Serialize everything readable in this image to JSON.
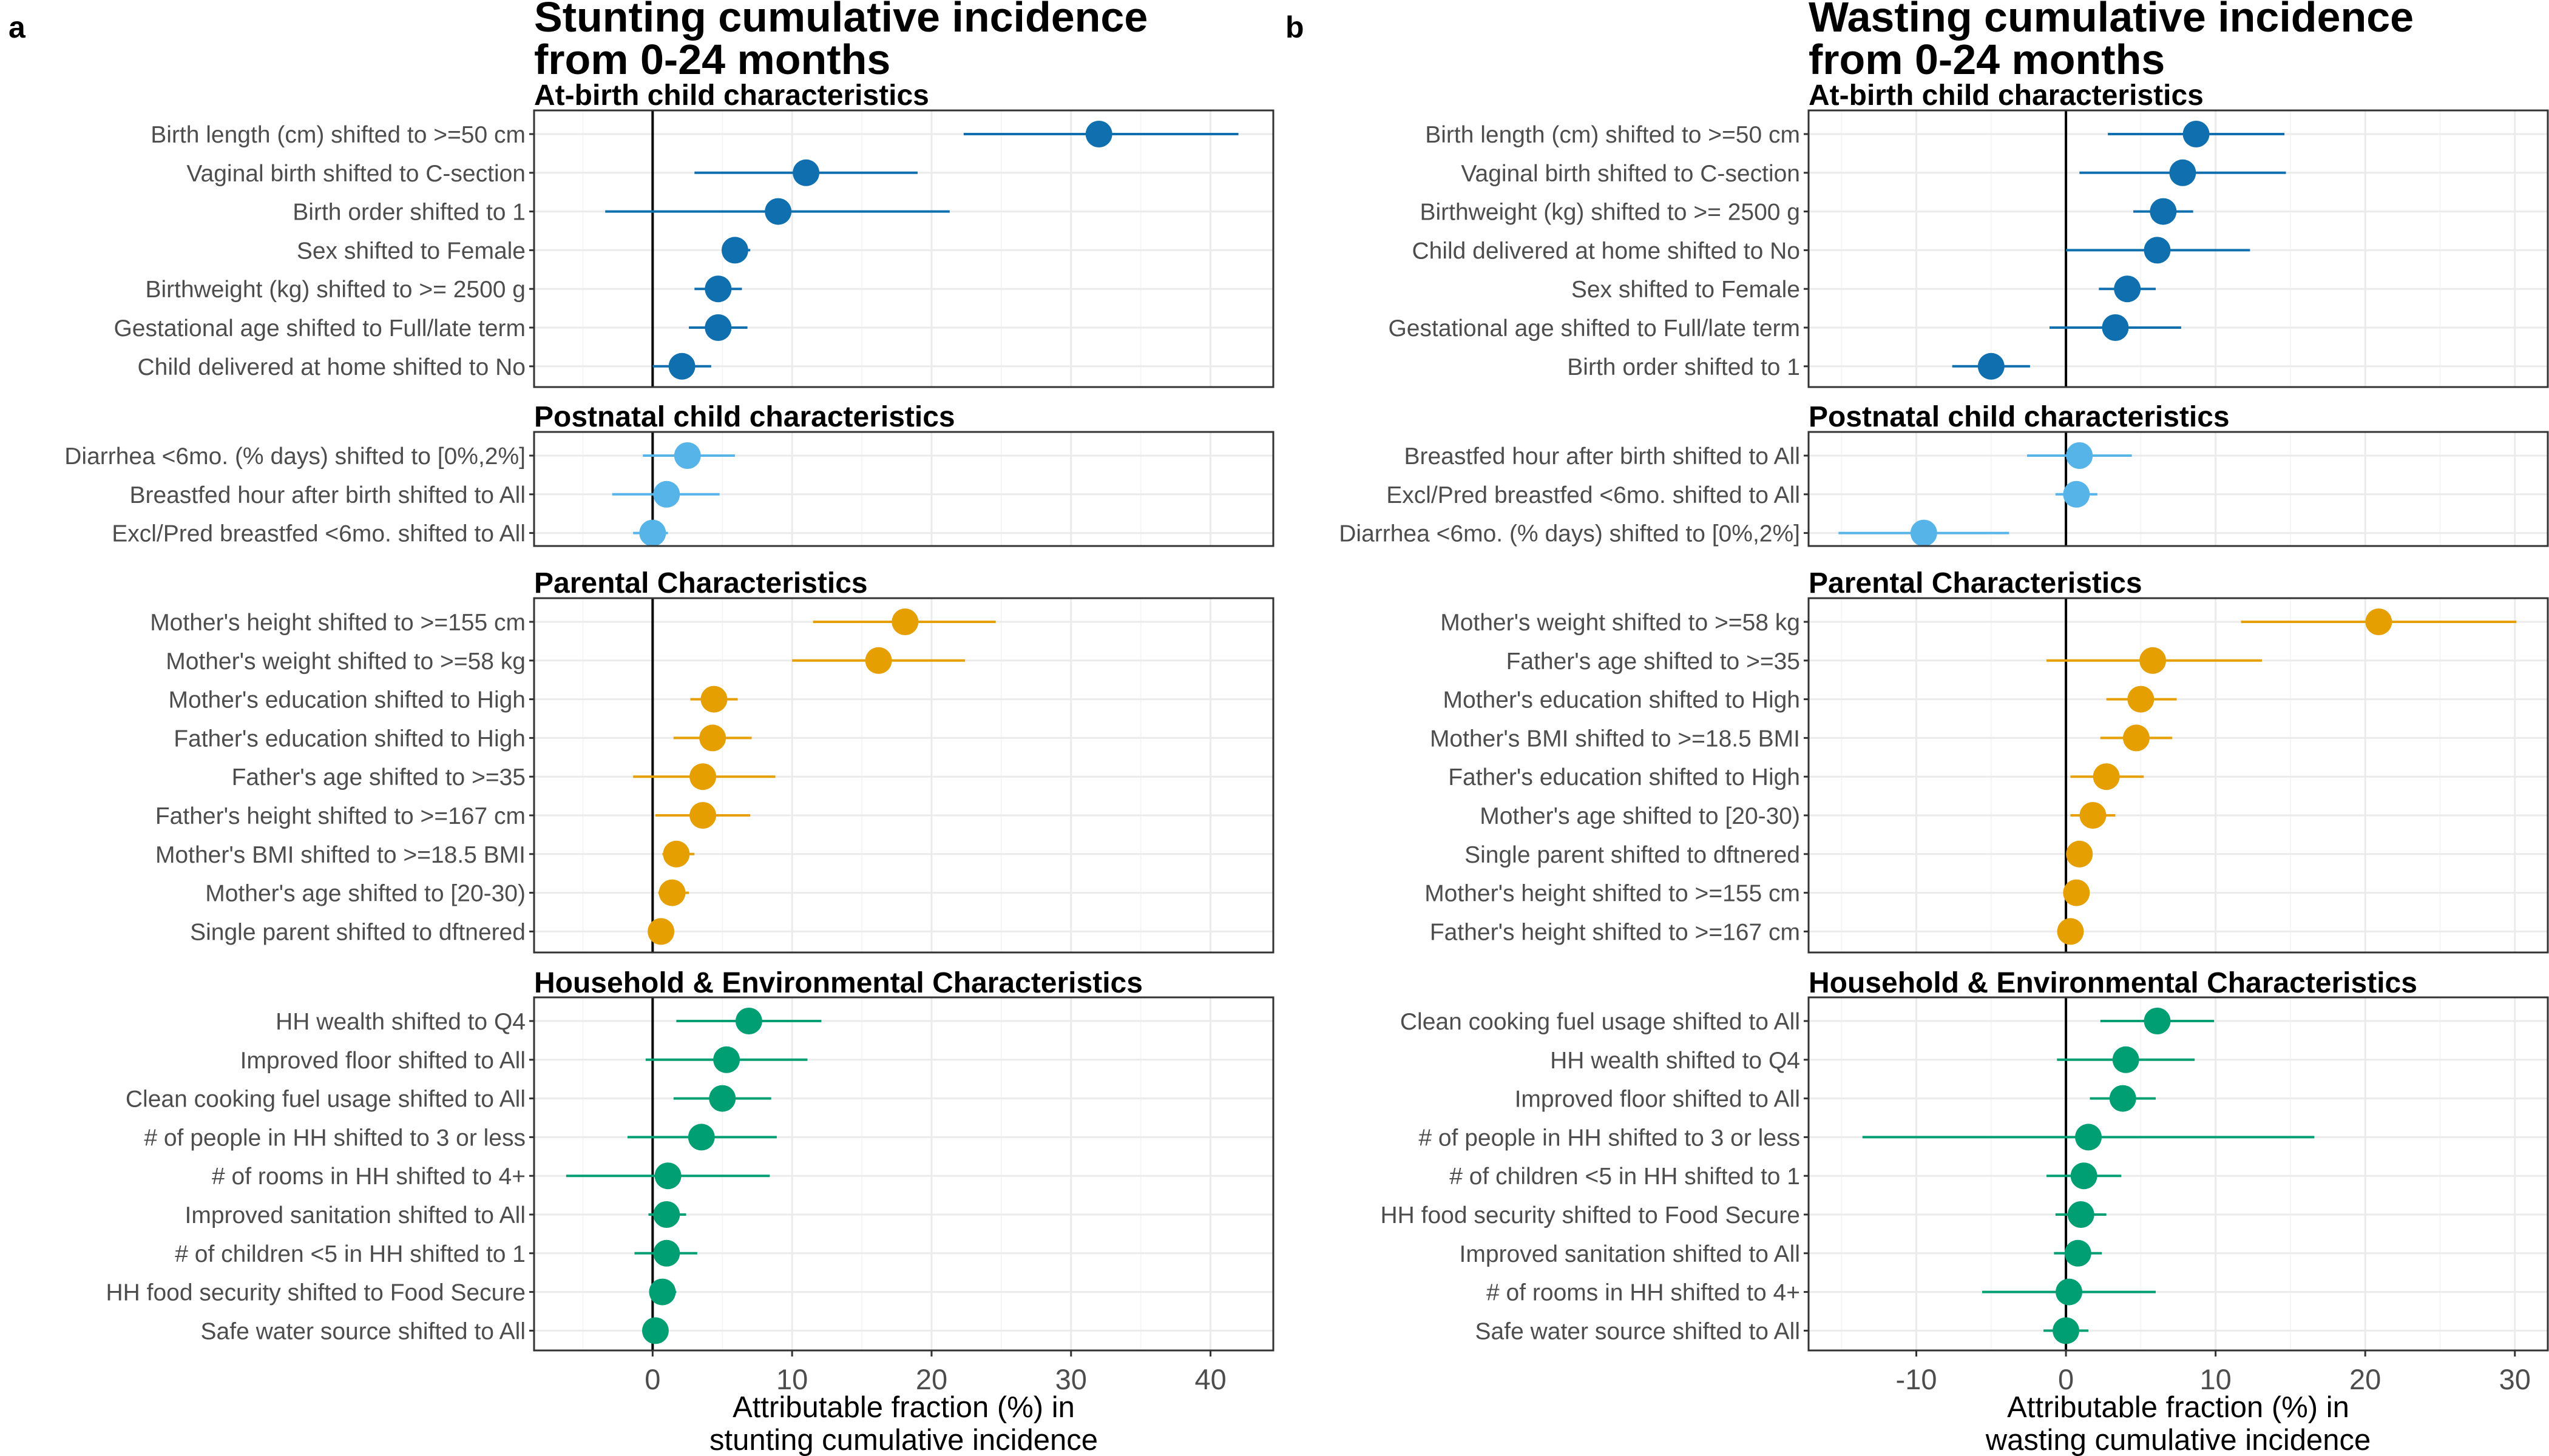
{
  "chart_data": [
    {
      "type": "forest",
      "tag": "a",
      "title_lines": [
        "Stunting cumulative incidence",
        "from 0-24 months"
      ],
      "xlabel_lines": [
        "Attributable fraction (%) in",
        "stunting cumulative incidence"
      ],
      "xlim": [
        -8.5,
        44.5
      ],
      "xticks": [
        0,
        10,
        20,
        30,
        40
      ],
      "grid": true,
      "panels": [
        {
          "name": "At-birth child characteristics",
          "color": "#0f6faf",
          "rows": [
            {
              "label": "Birth length (cm) shifted to >=50 cm",
              "est": 32.0,
              "lo": 22.3,
              "hi": 42.0
            },
            {
              "label": "Vaginal birth shifted to C-section",
              "est": 11.0,
              "lo": 3.0,
              "hi": 19.0
            },
            {
              "label": "Birth order shifted to 1",
              "est": 9.0,
              "lo": -3.4,
              "hi": 21.3
            },
            {
              "label": "Sex shifted to Female",
              "est": 5.9,
              "lo": 5.0,
              "hi": 7.0
            },
            {
              "label": "Birthweight (kg) shifted to >= 2500 g",
              "est": 4.7,
              "lo": 3.0,
              "hi": 6.4
            },
            {
              "label": "Gestational age shifted to Full/late term",
              "est": 4.7,
              "lo": 2.6,
              "hi": 6.8
            },
            {
              "label": "Child delivered at home shifted to No",
              "est": 2.1,
              "lo": 0.0,
              "hi": 4.2
            }
          ]
        },
        {
          "name": "Postnatal child characteristics",
          "color": "#56b4e9",
          "rows": [
            {
              "label": "Diarrhea <6mo. (% days) shifted to [0%,2%]",
              "est": 2.5,
              "lo": -0.7,
              "hi": 5.9
            },
            {
              "label": "Breastfed hour after birth shifted to All",
              "est": 1.0,
              "lo": -2.9,
              "hi": 4.8
            },
            {
              "label": "Excl/Pred breastfed <6mo. shifted to All",
              "est": 0.0,
              "lo": -1.4,
              "hi": 1.1
            }
          ]
        },
        {
          "name": "Parental Characteristics",
          "color": "#e69f00",
          "rows": [
            {
              "label": "Mother's height shifted to >=155 cm",
              "est": 18.1,
              "lo": 11.5,
              "hi": 24.6
            },
            {
              "label": "Mother's weight shifted to >=58 kg",
              "est": 16.2,
              "lo": 10.0,
              "hi": 22.4
            },
            {
              "label": "Mother's education shifted to High",
              "est": 4.4,
              "lo": 2.7,
              "hi": 6.1
            },
            {
              "label": "Father's education shifted to High",
              "est": 4.3,
              "lo": 1.5,
              "hi": 7.1
            },
            {
              "label": "Father's age shifted to >=35",
              "est": 3.6,
              "lo": -1.4,
              "hi": 8.8
            },
            {
              "label": "Father's height shifted to >=167 cm",
              "est": 3.6,
              "lo": 0.2,
              "hi": 7.0
            },
            {
              "label": "Mother's BMI shifted to >=18.5 BMI",
              "est": 1.7,
              "lo": 0.7,
              "hi": 3.0
            },
            {
              "label": "Mother's age shifted to [20-30)",
              "est": 1.4,
              "lo": 0.4,
              "hi": 2.6
            },
            {
              "label": "Single parent shifted to dftnered",
              "est": 0.6,
              "lo": 0.3,
              "hi": 0.9
            }
          ]
        },
        {
          "name": "Household & Environmental Characteristics",
          "color": "#009e73",
          "rows": [
            {
              "label": "HH wealth shifted to Q4",
              "est": 6.9,
              "lo": 1.7,
              "hi": 12.1
            },
            {
              "label": "Improved floor shifted to All",
              "est": 5.3,
              "lo": -0.5,
              "hi": 11.1
            },
            {
              "label": "Clean cooking fuel usage shifted to All",
              "est": 5.0,
              "lo": 1.5,
              "hi": 8.5
            },
            {
              "label": "# of people in HH shifted to 3 or less",
              "est": 3.5,
              "lo": -1.8,
              "hi": 8.9
            },
            {
              "label": "# of rooms in HH shifted to 4+",
              "est": 1.1,
              "lo": -6.2,
              "hi": 8.4
            },
            {
              "label": "Improved sanitation shifted to All",
              "est": 1.0,
              "lo": -0.3,
              "hi": 2.4
            },
            {
              "label": "# of children <5 in HH shifted to 1",
              "est": 1.0,
              "lo": -1.3,
              "hi": 3.2
            },
            {
              "label": "HH food security shifted to Food Secure",
              "est": 0.7,
              "lo": -0.2,
              "hi": 1.7
            },
            {
              "label": "Safe water source shifted to All",
              "est": 0.2,
              "lo": -0.3,
              "hi": 0.6
            }
          ]
        }
      ]
    },
    {
      "type": "forest",
      "tag": "b",
      "title_lines": [
        "Wasting cumulative incidence",
        "from 0-24 months"
      ],
      "xlabel_lines": [
        "Attributable fraction (%) in",
        "wasting cumulative incidence"
      ],
      "xlim": [
        -17.2,
        32.2
      ],
      "xticks": [
        -10,
        0,
        10,
        20,
        30
      ],
      "grid": true,
      "panels": [
        {
          "name": "At-birth child characteristics",
          "color": "#0f6faf",
          "rows": [
            {
              "label": "Birth length (cm) shifted to >=50 cm",
              "est": 8.7,
              "lo": 2.8,
              "hi": 14.6
            },
            {
              "label": "Vaginal birth shifted to C-section",
              "est": 7.8,
              "lo": 0.9,
              "hi": 14.7
            },
            {
              "label": "Birthweight (kg) shifted to >= 2500 g",
              "est": 6.5,
              "lo": 4.5,
              "hi": 8.5
            },
            {
              "label": "Child delivered at home shifted to No",
              "est": 6.1,
              "lo": 0.0,
              "hi": 12.3
            },
            {
              "label": "Sex shifted to Female",
              "est": 4.1,
              "lo": 2.2,
              "hi": 6.0
            },
            {
              "label": "Gestational age shifted to Full/late term",
              "est": 3.3,
              "lo": -1.1,
              "hi": 7.7
            },
            {
              "label": "Birth order shifted to 1",
              "est": -5.0,
              "lo": -7.6,
              "hi": -2.4
            }
          ]
        },
        {
          "name": "Postnatal child characteristics",
          "color": "#56b4e9",
          "rows": [
            {
              "label": "Breastfed hour after birth shifted to All",
              "est": 0.9,
              "lo": -2.6,
              "hi": 4.4
            },
            {
              "label": "Excl/Pred breastfed <6mo. shifted to All",
              "est": 0.7,
              "lo": -0.7,
              "hi": 2.1
            },
            {
              "label": "Diarrhea <6mo. (% days) shifted to [0%,2%]",
              "est": -9.5,
              "lo": -15.2,
              "hi": -3.8
            }
          ]
        },
        {
          "name": "Parental Characteristics",
          "color": "#e69f00",
          "rows": [
            {
              "label": "Mother's weight shifted to >=58 kg",
              "est": 20.9,
              "lo": 11.7,
              "hi": 30.1
            },
            {
              "label": "Father's age shifted to >=35",
              "est": 5.8,
              "lo": -1.3,
              "hi": 13.1
            },
            {
              "label": "Mother's education shifted to High",
              "est": 5.0,
              "lo": 2.7,
              "hi": 7.4
            },
            {
              "label": "Mother's BMI shifted to >=18.5 BMI",
              "est": 4.7,
              "lo": 2.3,
              "hi": 7.1
            },
            {
              "label": "Father's education shifted to High",
              "est": 2.7,
              "lo": 0.3,
              "hi": 5.2
            },
            {
              "label": "Mother's age shifted to [20-30)",
              "est": 1.8,
              "lo": 0.3,
              "hi": 3.3
            },
            {
              "label": "Single parent shifted to dftnered",
              "est": 0.9,
              "lo": 0.5,
              "hi": 1.4
            },
            {
              "label": "Mother's height shifted to >=155 cm",
              "est": 0.7,
              "lo": 0.3,
              "hi": 1.2
            },
            {
              "label": "Father's height shifted to >=167 cm",
              "est": 0.3,
              "lo": 0.1,
              "hi": 0.6
            }
          ]
        },
        {
          "name": "Household & Environmental Characteristics",
          "color": "#009e73",
          "rows": [
            {
              "label": "Clean cooking fuel usage shifted to All",
              "est": 6.1,
              "lo": 2.3,
              "hi": 9.9
            },
            {
              "label": "HH wealth shifted to Q4",
              "est": 4.0,
              "lo": -0.6,
              "hi": 8.6
            },
            {
              "label": "Improved floor shifted to All",
              "est": 3.8,
              "lo": 1.6,
              "hi": 6.0
            },
            {
              "label": "# of people in HH shifted to 3 or less",
              "est": 1.5,
              "lo": -13.6,
              "hi": 16.6
            },
            {
              "label": "# of children <5 in HH shifted to 1",
              "est": 1.2,
              "lo": -1.3,
              "hi": 3.7
            },
            {
              "label": "HH food security shifted to Food Secure",
              "est": 1.0,
              "lo": -0.7,
              "hi": 2.7
            },
            {
              "label": "Improved sanitation shifted to All",
              "est": 0.8,
              "lo": -0.8,
              "hi": 2.4
            },
            {
              "label": "# of rooms in HH shifted to 4+",
              "est": 0.2,
              "lo": -5.6,
              "hi": 6.0
            },
            {
              "label": "Safe water source shifted to All",
              "est": 0.0,
              "lo": -1.5,
              "hi": 1.5
            }
          ]
        }
      ]
    }
  ]
}
